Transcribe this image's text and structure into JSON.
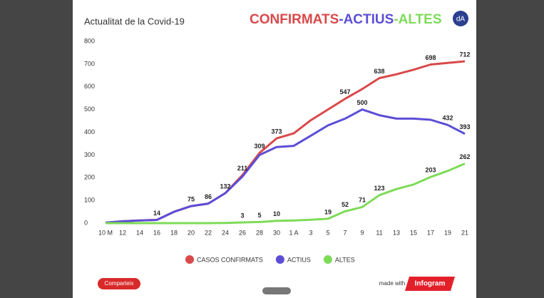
{
  "chart_data": {
    "type": "line",
    "title": "Actualitat de la Covid-19",
    "heading": [
      "CONFIRMATS",
      "-ACTIUS",
      "-ALTES"
    ],
    "logo": "dA",
    "categories": [
      "10 M",
      "12",
      "14",
      "16",
      "18",
      "20",
      "22",
      "24",
      "26",
      "28",
      "30",
      "1 A",
      "3",
      "5",
      "7",
      "9",
      "11",
      "13",
      "15",
      "17",
      "19",
      "21"
    ],
    "series": [
      {
        "name": "CASOS CONFIRMATS",
        "color": "#d9494a",
        "values": [
          2,
          8,
          12,
          14,
          50,
          75,
          86,
          132,
          211,
          309,
          373,
          395,
          453,
          500,
          547,
          590,
          638,
          655,
          675,
          698,
          705,
          712
        ],
        "value_labels": [
          null,
          null,
          null,
          "14",
          null,
          "75",
          "86",
          "132",
          "211",
          "309",
          "373",
          null,
          null,
          null,
          "547",
          null,
          "638",
          null,
          null,
          "698",
          null,
          "712"
        ]
      },
      {
        "name": "ACTIUS",
        "color": "#5b4ed6",
        "values": [
          2,
          8,
          12,
          14,
          50,
          75,
          86,
          132,
          205,
          300,
          335,
          340,
          385,
          430,
          460,
          500,
          475,
          460,
          460,
          455,
          432,
          393
        ],
        "value_labels": [
          null,
          null,
          null,
          null,
          null,
          null,
          null,
          null,
          null,
          null,
          null,
          null,
          null,
          null,
          null,
          "500",
          null,
          null,
          null,
          null,
          "432",
          "393"
        ]
      },
      {
        "name": "ALTES",
        "color": "#7edb58",
        "values": [
          0,
          0,
          0,
          0,
          0,
          0,
          0,
          1,
          3,
          5,
          10,
          12,
          15,
          19,
          52,
          71,
          123,
          150,
          170,
          203,
          230,
          262
        ],
        "value_labels": [
          null,
          null,
          null,
          null,
          null,
          null,
          null,
          null,
          "3",
          "5",
          "10",
          null,
          null,
          "19",
          "52",
          "71",
          "123",
          null,
          null,
          "203",
          null,
          "262"
        ]
      }
    ],
    "ylim": [
      0,
      800
    ],
    "yticks": [
      0,
      100,
      200,
      300,
      400,
      500,
      600,
      700,
      800
    ],
    "share": "Comparteix",
    "made_with": "made with",
    "brand": "Infogram"
  }
}
